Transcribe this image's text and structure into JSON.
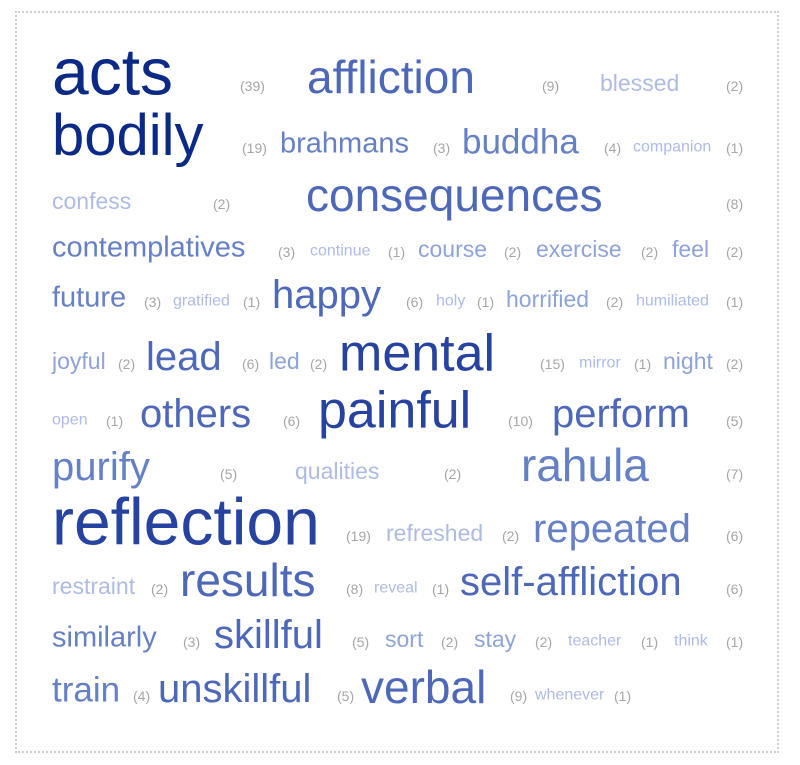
{
  "cloud": {
    "acts": {
      "word": "acts",
      "count": "(39)"
    },
    "affliction": {
      "word": "affliction",
      "count": "(9)"
    },
    "blessed": {
      "word": "blessed",
      "count": "(2)"
    },
    "bodily": {
      "word": "bodily",
      "count": "(19)"
    },
    "brahmans": {
      "word": "brahmans",
      "count": "(3)"
    },
    "buddha": {
      "word": "buddha",
      "count": "(4)"
    },
    "companion": {
      "word": "companion",
      "count": "(1)"
    },
    "confess": {
      "word": "confess",
      "count": "(2)"
    },
    "consequences": {
      "word": "consequences",
      "count": "(8)"
    },
    "contemplatives": {
      "word": "contemplatives",
      "count": "(3)"
    },
    "continue": {
      "word": "continue",
      "count": "(1)"
    },
    "course": {
      "word": "course",
      "count": "(2)"
    },
    "exercise": {
      "word": "exercise",
      "count": "(2)"
    },
    "feel": {
      "word": "feel",
      "count": "(2)"
    },
    "future": {
      "word": "future",
      "count": "(3)"
    },
    "gratified": {
      "word": "gratified",
      "count": "(1)"
    },
    "happy": {
      "word": "happy",
      "count": "(6)"
    },
    "holy": {
      "word": "holy",
      "count": "(1)"
    },
    "horrified": {
      "word": "horrified",
      "count": "(2)"
    },
    "humiliated": {
      "word": "humiliated",
      "count": "(1)"
    },
    "joyful": {
      "word": "joyful",
      "count": "(2)"
    },
    "lead": {
      "word": "lead",
      "count": "(6)"
    },
    "led": {
      "word": "led",
      "count": "(2)"
    },
    "mental": {
      "word": "mental",
      "count": "(15)"
    },
    "mirror": {
      "word": "mirror",
      "count": "(1)"
    },
    "night": {
      "word": "night",
      "count": "(2)"
    },
    "open": {
      "word": "open",
      "count": "(1)"
    },
    "others": {
      "word": "others",
      "count": "(6)"
    },
    "painful": {
      "word": "painful",
      "count": "(10)"
    },
    "perform": {
      "word": "perform",
      "count": "(5)"
    },
    "purify": {
      "word": "purify",
      "count": "(5)"
    },
    "qualities": {
      "word": "qualities",
      "count": "(2)"
    },
    "rahula": {
      "word": "rahula",
      "count": "(7)"
    },
    "reflection": {
      "word": "reflection",
      "count": "(19)"
    },
    "refreshed": {
      "word": "refreshed",
      "count": "(2)"
    },
    "repeated": {
      "word": "repeated",
      "count": "(6)"
    },
    "restraint": {
      "word": "restraint",
      "count": "(2)"
    },
    "results": {
      "word": "results",
      "count": "(8)"
    },
    "reveal": {
      "word": "reveal",
      "count": "(1)"
    },
    "selfaffliction": {
      "word": "self-affliction",
      "count": "(6)"
    },
    "similarly": {
      "word": "similarly",
      "count": "(3)"
    },
    "skillful": {
      "word": "skillful",
      "count": "(5)"
    },
    "sort": {
      "word": "sort",
      "count": "(2)"
    },
    "stay": {
      "word": "stay",
      "count": "(2)"
    },
    "teacher": {
      "word": "teacher",
      "count": "(1)"
    },
    "think": {
      "word": "think",
      "count": "(1)"
    },
    "train": {
      "word": "train",
      "count": "(4)"
    },
    "unskillful": {
      "word": "unskillful",
      "count": "(5)"
    },
    "verbal": {
      "word": "verbal",
      "count": "(9)"
    },
    "whenever": {
      "word": "whenever",
      "count": "(1)"
    }
  },
  "colors": {
    "darkest": "#0b2a86",
    "dark": "#2743a0",
    "mid": "#4d68b8",
    "midlight": "#6680c6",
    "light": "#8ea3d8",
    "lightest": "#aebbe4",
    "count": "#a6a6a6",
    "frame": "#cfcfcf"
  }
}
